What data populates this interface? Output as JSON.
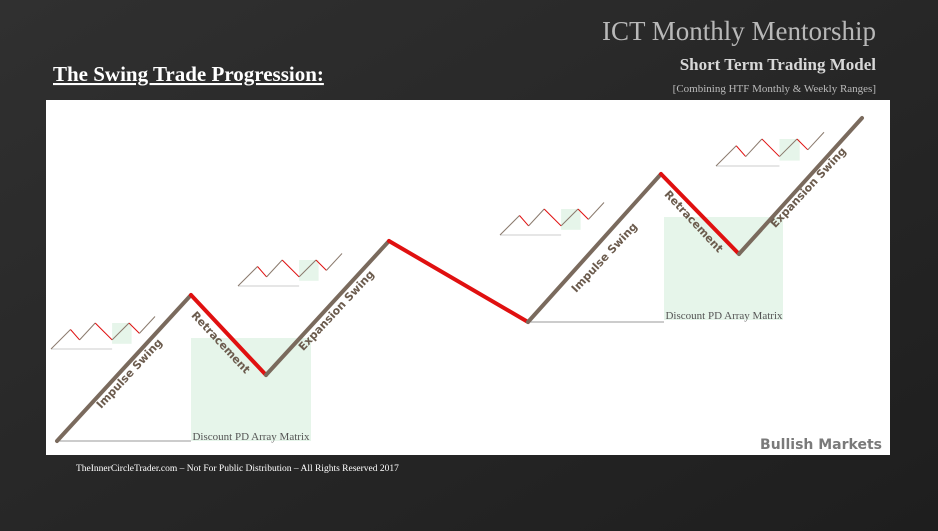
{
  "header": {
    "title": "ICT Monthly Mentorship",
    "subtitle": "Short Term Trading Model",
    "note": "[Combining HTF Monthly & Weekly Ranges]"
  },
  "slide_title": "The Swing Trade Progression:",
  "diagram": {
    "labels": [
      "Impulse Swing",
      "Retracement",
      "Expansion Swing",
      "Discount PD Array Matrix",
      "Impulse Swing",
      "Retracement",
      "Expansion Swing",
      "Discount PD Array Matrix"
    ],
    "badge": "Bullish Markets"
  },
  "footer": "TheInnerCircleTrader.com – Not For Public Distribution – All Rights Reserved 2017"
}
